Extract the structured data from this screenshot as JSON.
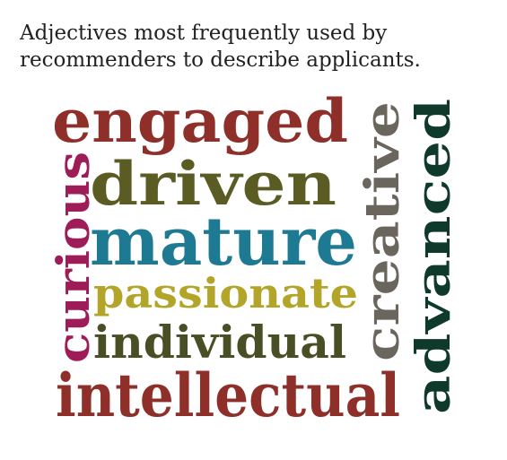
{
  "title": {
    "line1": "Adjectives most frequently used by",
    "line2": "recommenders to describe applicants."
  },
  "words": [
    {
      "id": "engaged",
      "text": "engaged",
      "color": "#8e2f2a"
    },
    {
      "id": "driven",
      "text": "driven",
      "color": "#5a5c23"
    },
    {
      "id": "mature",
      "text": "mature",
      "color": "#1e7a93"
    },
    {
      "id": "passionate",
      "text": "passionate",
      "color": "#b3a52a"
    },
    {
      "id": "individual",
      "text": "individual",
      "color": "#4a4e24"
    },
    {
      "id": "intellectual",
      "text": "intellectual",
      "color": "#8e2f2a"
    },
    {
      "id": "curious",
      "text": "curious",
      "color": "#9e1d58"
    },
    {
      "id": "creative",
      "text": "creative",
      "color": "#6b665d"
    },
    {
      "id": "advanced",
      "text": "advanced",
      "color": "#0f3a2b"
    }
  ]
}
